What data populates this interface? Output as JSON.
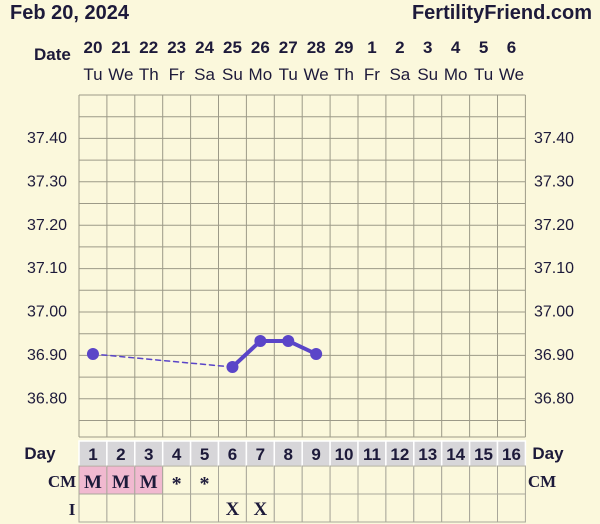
{
  "header": {
    "date": "Feb 20, 2024",
    "site": "FertilityFriend.com"
  },
  "labels": {
    "date_row": "Date",
    "day_row": "Day",
    "cm_row": "CM",
    "i_row": "I"
  },
  "columns": [
    {
      "date": "20",
      "dow": "Tu",
      "day": "1",
      "cm": "M",
      "i": ""
    },
    {
      "date": "21",
      "dow": "We",
      "day": "2",
      "cm": "M",
      "i": ""
    },
    {
      "date": "22",
      "dow": "Th",
      "day": "3",
      "cm": "M",
      "i": ""
    },
    {
      "date": "23",
      "dow": "Fr",
      "day": "4",
      "cm": "*",
      "i": ""
    },
    {
      "date": "24",
      "dow": "Sa",
      "day": "5",
      "cm": "*",
      "i": ""
    },
    {
      "date": "25",
      "dow": "Su",
      "day": "6",
      "cm": "",
      "i": "X"
    },
    {
      "date": "26",
      "dow": "Mo",
      "day": "7",
      "cm": "",
      "i": "X"
    },
    {
      "date": "27",
      "dow": "Tu",
      "day": "8",
      "cm": "",
      "i": ""
    },
    {
      "date": "28",
      "dow": "We",
      "day": "9",
      "cm": "",
      "i": ""
    },
    {
      "date": "29",
      "dow": "Th",
      "day": "10",
      "cm": "",
      "i": ""
    },
    {
      "date": "1",
      "dow": "Fr",
      "day": "11",
      "cm": "",
      "i": ""
    },
    {
      "date": "2",
      "dow": "Sa",
      "day": "12",
      "cm": "",
      "i": ""
    },
    {
      "date": "3",
      "dow": "Su",
      "day": "13",
      "cm": "",
      "i": ""
    },
    {
      "date": "4",
      "dow": "Mo",
      "day": "14",
      "cm": "",
      "i": ""
    },
    {
      "date": "5",
      "dow": "Tu",
      "day": "15",
      "cm": "",
      "i": ""
    },
    {
      "date": "6",
      "dow": "We",
      "day": "16",
      "cm": "",
      "i": ""
    }
  ],
  "colors": {
    "line": "#5a45c8",
    "grid": "#9c9a88",
    "day_bg": "#d7d6d9",
    "menses_bg": "#f1b9d0",
    "text": "#1d1a3a"
  },
  "chart_data": {
    "type": "line",
    "x": [
      1,
      2,
      3,
      4,
      5,
      6,
      7,
      8,
      9,
      10,
      11,
      12,
      13,
      14,
      15,
      16
    ],
    "ylim": [
      36.75,
      37.5
    ],
    "yticks": [
      "37.40",
      "37.30",
      "37.20",
      "37.10",
      "37.00",
      "36.90",
      "36.80"
    ],
    "series": [
      {
        "values": [
          36.9,
          null,
          null,
          null,
          null,
          36.87,
          36.93,
          36.93,
          36.9,
          null,
          null,
          null,
          null,
          null,
          null,
          null
        ]
      }
    ],
    "grid": true
  }
}
